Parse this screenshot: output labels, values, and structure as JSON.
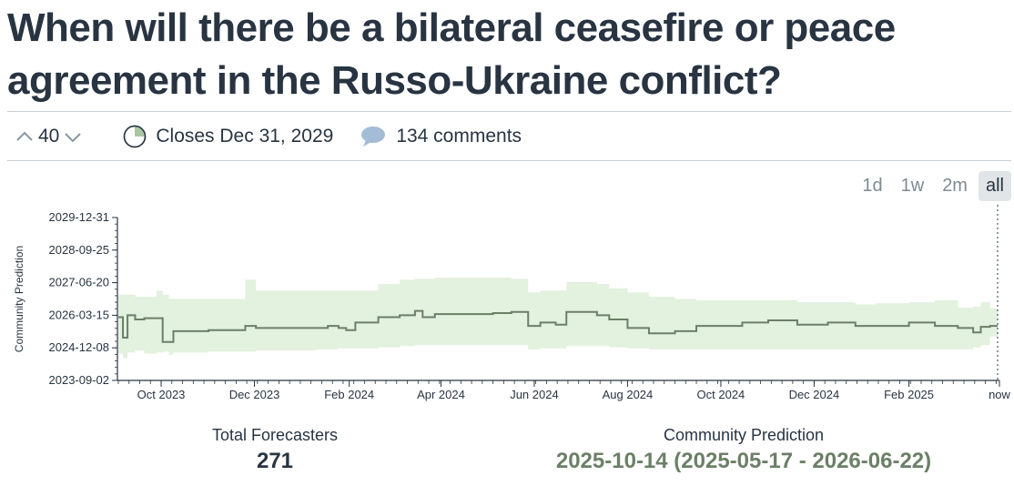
{
  "question": {
    "title": "When will there be a bilateral ceasefire or peace agreement in the Russo-Ukraine conflict?"
  },
  "meta": {
    "votes": "40",
    "closes": "Closes Dec 31, 2029",
    "comments": "134 comments"
  },
  "range_buttons": [
    "1d",
    "1w",
    "2m",
    "all"
  ],
  "range_active": "all",
  "stats": {
    "forecasters_label": "Total Forecasters",
    "forecasters_value": "271",
    "prediction_label": "Community Prediction",
    "prediction_value": "2025-10-14 (2025-05-17 - 2026-06-22)"
  },
  "colors": {
    "line": "#6b8067",
    "band": "#e3f1df",
    "text": "#283441"
  },
  "chart_data": {
    "type": "area",
    "ylabel": "Community Prediction",
    "y_ticks": [
      "2023-09-02",
      "2024-12-08",
      "2026-03-15",
      "2027-06-20",
      "2028-09-25",
      "2029-12-31"
    ],
    "y_range": [
      "2023-09-02",
      "2029-12-31"
    ],
    "x_ticks": [
      "Oct 2023",
      "Dec 2023",
      "Feb 2024",
      "Apr 2024",
      "Jun 2024",
      "Aug 2024",
      "Oct 2024",
      "Dec 2024",
      "Feb 2025",
      "now"
    ],
    "x_range": [
      "2023-09-03",
      "2025-03-31"
    ],
    "series": [
      {
        "points": [
          [
            "2023-09-03",
            "2026-02-15",
            "2024-09-15",
            "2027-01-01"
          ],
          [
            "2023-09-06",
            "2025-05-01",
            "2024-07-15",
            "2027-01-01"
          ],
          [
            "2023-09-09",
            "2026-03-15",
            "2024-10-01",
            "2027-01-01"
          ],
          [
            "2023-09-14",
            "2026-01-15",
            "2024-11-01",
            "2026-12-01"
          ],
          [
            "2023-09-20",
            "2026-02-01",
            "2024-09-15",
            "2026-12-01"
          ],
          [
            "2023-09-28",
            "2026-02-01",
            "2024-10-01",
            "2027-03-01"
          ],
          [
            "2023-10-02",
            "2025-03-01",
            "2024-10-15",
            "2027-01-01"
          ],
          [
            "2023-10-06",
            "2025-03-01",
            "2024-09-01",
            "2026-11-01"
          ],
          [
            "2023-10-09",
            "2025-08-01",
            "2024-10-01",
            "2026-11-01"
          ],
          [
            "2023-11-01",
            "2025-08-15",
            "2024-10-15",
            "2026-11-01"
          ],
          [
            "2023-11-25",
            "2025-10-15",
            "2024-10-15",
            "2027-08-01"
          ],
          [
            "2023-12-02",
            "2025-09-15",
            "2024-11-01",
            "2027-03-01"
          ],
          [
            "2024-01-10",
            "2025-09-15",
            "2024-11-15",
            "2027-03-01"
          ],
          [
            "2024-01-18",
            "2025-10-15",
            "2024-11-15",
            "2027-03-01"
          ],
          [
            "2024-01-25",
            "2025-09-15",
            "2024-12-01",
            "2027-03-01"
          ],
          [
            "2024-01-30",
            "2025-08-15",
            "2024-12-01",
            "2027-03-01"
          ],
          [
            "2024-02-05",
            "2025-12-01",
            "2024-12-01",
            "2027-03-01"
          ],
          [
            "2024-02-20",
            "2026-02-15",
            "2024-12-15",
            "2027-06-01"
          ],
          [
            "2024-03-05",
            "2026-03-15",
            "2025-01-01",
            "2027-08-01"
          ],
          [
            "2024-03-15",
            "2026-05-15",
            "2025-01-15",
            "2027-08-15"
          ],
          [
            "2024-03-20",
            "2026-02-15",
            "2025-01-15",
            "2027-08-15"
          ],
          [
            "2024-03-28",
            "2026-04-01",
            "2025-01-15",
            "2027-09-01"
          ],
          [
            "2024-05-05",
            "2026-04-15",
            "2025-01-15",
            "2027-09-01"
          ],
          [
            "2024-05-17",
            "2026-05-01",
            "2025-01-15",
            "2027-08-15"
          ],
          [
            "2024-05-28",
            "2025-10-15",
            "2024-11-15",
            "2027-02-01"
          ],
          [
            "2024-06-05",
            "2025-12-01",
            "2024-12-01",
            "2027-03-01"
          ],
          [
            "2024-06-15",
            "2025-11-01",
            "2024-12-01",
            "2027-03-01"
          ],
          [
            "2024-06-22",
            "2026-05-01",
            "2025-01-01",
            "2027-07-01"
          ],
          [
            "2024-07-12",
            "2026-03-15",
            "2025-01-01",
            "2027-06-01"
          ],
          [
            "2024-07-20",
            "2026-01-15",
            "2024-12-15",
            "2027-04-01"
          ],
          [
            "2024-08-01",
            "2025-09-15",
            "2024-12-01",
            "2027-02-01"
          ],
          [
            "2024-08-15",
            "2025-07-01",
            "2024-11-15",
            "2026-12-01"
          ],
          [
            "2024-09-01",
            "2025-08-01",
            "2024-11-15",
            "2026-11-01"
          ],
          [
            "2024-09-15",
            "2025-10-15",
            "2024-11-15",
            "2026-10-15"
          ],
          [
            "2024-10-15",
            "2025-12-01",
            "2024-11-15",
            "2026-10-15"
          ],
          [
            "2024-11-01",
            "2026-01-01",
            "2024-11-15",
            "2026-10-15"
          ],
          [
            "2024-11-20",
            "2025-11-01",
            "2024-11-15",
            "2026-09-15"
          ],
          [
            "2024-12-10",
            "2025-12-01",
            "2024-11-15",
            "2026-09-15"
          ],
          [
            "2024-12-28",
            "2025-10-15",
            "2024-11-15",
            "2026-08-15"
          ],
          [
            "2025-01-10",
            "2025-10-15",
            "2024-11-15",
            "2026-09-01"
          ],
          [
            "2025-02-01",
            "2025-12-01",
            "2024-11-15",
            "2026-09-15"
          ],
          [
            "2025-02-18",
            "2025-10-15",
            "2024-11-15",
            "2026-10-15"
          ],
          [
            "2025-03-05",
            "2025-09-15",
            "2024-11-15",
            "2026-07-01"
          ],
          [
            "2025-03-15",
            "2025-07-15",
            "2024-12-15",
            "2026-07-15"
          ],
          [
            "2025-03-20",
            "2025-10-01",
            "2025-01-15",
            "2026-09-15"
          ],
          [
            "2025-03-26",
            "2025-10-14",
            "2025-05-17",
            "2026-06-22"
          ]
        ]
      }
    ]
  }
}
